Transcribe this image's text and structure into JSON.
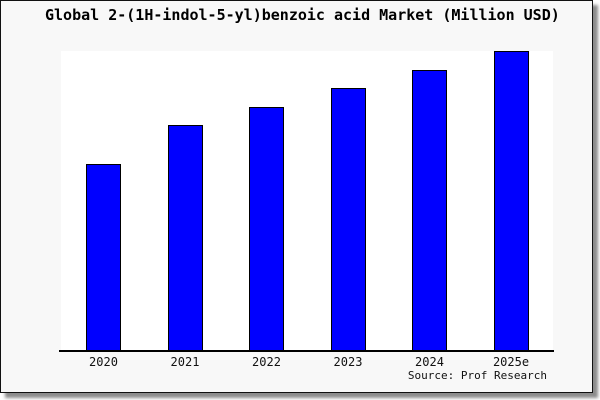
{
  "title": "Global 2-(1H-indol-5-yl)benzoic acid Market (Million USD)",
  "source_note": "Source: Prof Research",
  "colors": {
    "bar_fill": "#0000ff",
    "bar_border": "#000000",
    "card_background": "#f8f8f8",
    "plot_background": "#ffffff",
    "axis": "#000000",
    "text": "#000000"
  },
  "chart_data": {
    "type": "bar",
    "title": "Global 2-(1H-indol-5-yl)benzoic acid Market (Million USD)",
    "categories": [
      "2020",
      "2021",
      "2022",
      "2023",
      "2024",
      "2025e"
    ],
    "values": [
      62.3,
      75.3,
      81.3,
      87.7,
      93.7,
      100
    ],
    "xlabel": "",
    "ylabel": "",
    "ylim": [
      0,
      100
    ],
    "y_axis_shown": false,
    "grid": false,
    "legend": false,
    "annotation": "Source: Prof Research"
  }
}
